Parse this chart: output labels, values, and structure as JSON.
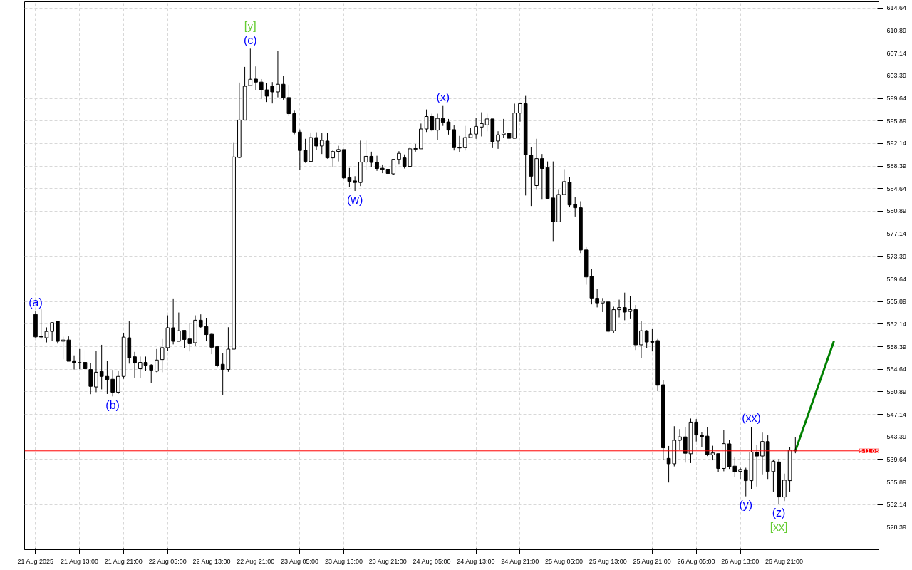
{
  "chart_data": {
    "type": "candlestick",
    "x": [
      "2025-08-21T05:00",
      "2025-08-21T06:00",
      "2025-08-21T07:00",
      "2025-08-21T08:00",
      "2025-08-21T09:00",
      "2025-08-21T10:00",
      "2025-08-21T11:00",
      "2025-08-21T12:00",
      "2025-08-21T13:00",
      "2025-08-21T14:00",
      "2025-08-21T15:00",
      "2025-08-21T16:00",
      "2025-08-21T17:00",
      "2025-08-21T18:00",
      "2025-08-21T19:00",
      "2025-08-21T20:00",
      "2025-08-21T21:00",
      "2025-08-21T22:00",
      "2025-08-21T23:00",
      "2025-08-22T00:00",
      "2025-08-22T01:00",
      "2025-08-22T02:00",
      "2025-08-22T03:00",
      "2025-08-22T04:00",
      "2025-08-22T05:00",
      "2025-08-22T06:00",
      "2025-08-22T07:00",
      "2025-08-22T08:00",
      "2025-08-22T09:00",
      "2025-08-22T10:00",
      "2025-08-22T11:00",
      "2025-08-22T12:00",
      "2025-08-22T13:00",
      "2025-08-22T14:00",
      "2025-08-22T15:00",
      "2025-08-22T16:00",
      "2025-08-22T17:00",
      "2025-08-22T18:00",
      "2025-08-22T19:00",
      "2025-08-22T20:00",
      "2025-08-22T21:00",
      "2025-08-22T22:00",
      "2025-08-22T23:00",
      "2025-08-23T00:00",
      "2025-08-23T01:00",
      "2025-08-23T02:00",
      "2025-08-23T03:00",
      "2025-08-23T04:00",
      "2025-08-23T05:00",
      "2025-08-23T06:00",
      "2025-08-23T07:00",
      "2025-08-23T08:00",
      "2025-08-23T09:00",
      "2025-08-23T10:00",
      "2025-08-23T11:00",
      "2025-08-23T12:00",
      "2025-08-23T13:00",
      "2025-08-23T14:00",
      "2025-08-23T15:00",
      "2025-08-23T16:00",
      "2025-08-23T17:00",
      "2025-08-23T18:00",
      "2025-08-23T19:00",
      "2025-08-23T20:00",
      "2025-08-23T21:00",
      "2025-08-23T22:00",
      "2025-08-23T23:00",
      "2025-08-24T00:00",
      "2025-08-24T01:00",
      "2025-08-24T02:00",
      "2025-08-24T03:00",
      "2025-08-24T04:00",
      "2025-08-24T05:00",
      "2025-08-24T06:00",
      "2025-08-24T07:00",
      "2025-08-24T08:00",
      "2025-08-24T09:00",
      "2025-08-24T10:00",
      "2025-08-24T11:00",
      "2025-08-24T12:00",
      "2025-08-24T13:00",
      "2025-08-24T14:00",
      "2025-08-24T15:00",
      "2025-08-24T16:00",
      "2025-08-24T17:00",
      "2025-08-24T18:00",
      "2025-08-24T19:00",
      "2025-08-24T20:00",
      "2025-08-24T21:00",
      "2025-08-24T22:00",
      "2025-08-24T23:00",
      "2025-08-25T00:00",
      "2025-08-25T01:00",
      "2025-08-25T02:00",
      "2025-08-25T03:00",
      "2025-08-25T04:00",
      "2025-08-25T05:00",
      "2025-08-25T06:00",
      "2025-08-25T07:00",
      "2025-08-25T08:00",
      "2025-08-25T09:00",
      "2025-08-25T10:00",
      "2025-08-25T11:00",
      "2025-08-25T12:00",
      "2025-08-25T13:00",
      "2025-08-25T14:00",
      "2025-08-25T15:00",
      "2025-08-25T16:00",
      "2025-08-25T17:00",
      "2025-08-25T18:00",
      "2025-08-25T19:00",
      "2025-08-25T20:00",
      "2025-08-25T21:00",
      "2025-08-25T22:00",
      "2025-08-25T23:00",
      "2025-08-26T00:00",
      "2025-08-26T01:00",
      "2025-08-26T02:00",
      "2025-08-26T03:00",
      "2025-08-26T04:00",
      "2025-08-26T05:00",
      "2025-08-26T06:00",
      "2025-08-26T07:00",
      "2025-08-26T08:00",
      "2025-08-26T09:00",
      "2025-08-26T10:00",
      "2025-08-26T11:00",
      "2025-08-26T12:00",
      "2025-08-26T13:00",
      "2025-08-26T14:00",
      "2025-08-26T15:00",
      "2025-08-26T16:00",
      "2025-08-26T17:00",
      "2025-08-26T18:00",
      "2025-08-26T19:00",
      "2025-08-26T20:00",
      "2025-08-26T21:00",
      "2025-08-26T22:00",
      "2025-08-26T23:00"
    ],
    "ohlc": [
      [
        563.75,
        564.3,
        559.8,
        560.02
      ],
      [
        560.1,
        564.6,
        559.7,
        560.0
      ],
      [
        559.87,
        561.6,
        559.1,
        560.92
      ],
      [
        560.92,
        562.4,
        559.3,
        562.39
      ],
      [
        562.59,
        562.6,
        558.9,
        559.28
      ],
      [
        559.3,
        560.05,
        556.3,
        559.5
      ],
      [
        559.5,
        560.1,
        555.97,
        555.97
      ],
      [
        556.05,
        556.95,
        554.6,
        555.7
      ],
      [
        555.75,
        558.0,
        554.65,
        555.7
      ],
      [
        555.78,
        557.8,
        553.75,
        554.73
      ],
      [
        554.6,
        555.7,
        550.5,
        551.8
      ],
      [
        551.7,
        557.65,
        550.83,
        554.15
      ],
      [
        554.27,
        558.7,
        551.3,
        553.45
      ],
      [
        553.45,
        556.05,
        550.53,
        552.93
      ],
      [
        552.98,
        554.53,
        550.13,
        550.83
      ],
      [
        550.83,
        554.4,
        550.53,
        553.45
      ],
      [
        553.45,
        560.64,
        553.05,
        559.98
      ],
      [
        559.87,
        562.59,
        555.58,
        556.55
      ],
      [
        556.71,
        557.53,
        553.25,
        555.67
      ],
      [
        554.73,
        556.75,
        553.13,
        555.78
      ],
      [
        555.78,
        556.75,
        554.42,
        555.32
      ],
      [
        555.35,
        555.47,
        552.35,
        554.5
      ],
      [
        554.33,
        558.0,
        554.15,
        556.17
      ],
      [
        556.25,
        559.67,
        554.15,
        558.23
      ],
      [
        558.23,
        563.6,
        557.65,
        561.53
      ],
      [
        561.53,
        566.4,
        558.77,
        559.28
      ],
      [
        559.28,
        564.07,
        559.28,
        561.03
      ],
      [
        561.1,
        561.1,
        558.12,
        559.59
      ],
      [
        559.67,
        562.32,
        557.6,
        558.89
      ],
      [
        559.05,
        563.6,
        558.5,
        562.79
      ],
      [
        562.79,
        563.76,
        561.53,
        561.69
      ],
      [
        561.73,
        563.17,
        559.28,
        560.4
      ],
      [
        560.45,
        560.64,
        557.14,
        558.3
      ],
      [
        558.38,
        558.58,
        555.0,
        555.27
      ],
      [
        555.47,
        557.34,
        550.41,
        554.61
      ],
      [
        554.61,
        561.62,
        554.22,
        557.98
      ],
      [
        557.98,
        592.23,
        557.98,
        589.9
      ],
      [
        589.82,
        602.27,
        589.7,
        596.05
      ],
      [
        596.05,
        604.87,
        596.05,
        601.65
      ],
      [
        601.77,
        607.9,
        601.77,
        602.82
      ],
      [
        602.85,
        604.95,
        600.98,
        602.35
      ],
      [
        602.35,
        602.85,
        599.55,
        601.02
      ],
      [
        601.06,
        602.15,
        599.04,
        600.02
      ],
      [
        601.65,
        602.35,
        598.8,
        600.72
      ],
      [
        600.72,
        607.52,
        599.82,
        601.99
      ],
      [
        601.99,
        603.32,
        599.43,
        599.73
      ],
      [
        599.78,
        601.88,
        596.7,
        597.1
      ],
      [
        597.1,
        597.6,
        593.67,
        594.06
      ],
      [
        594.06,
        594.48,
        587.76,
        590.98
      ],
      [
        591.03,
        592.93,
        588.93,
        589.16
      ],
      [
        589.16,
        593.98,
        589.16,
        593.13
      ],
      [
        593.13,
        594.02,
        591.1,
        591.73
      ],
      [
        591.73,
        593.9,
        590.4,
        592.66
      ],
      [
        592.55,
        593.9,
        589.63,
        589.75
      ],
      [
        589.75,
        591.1,
        588.18,
        590.8
      ],
      [
        590.83,
        591.76,
        589.16,
        591.14
      ],
      [
        591.14,
        591.14,
        586.31,
        586.43
      ],
      [
        586.47,
        588.07,
        584.96,
        585.85
      ],
      [
        585.93,
        586.71,
        584.26,
        585.66
      ],
      [
        585.66,
        592.62,
        585.07,
        589.05
      ],
      [
        589.05,
        592.62,
        587.76,
        590.01
      ],
      [
        590.01,
        590.79,
        588.26,
        589.0
      ],
      [
        589.05,
        590.1,
        587.6,
        587.99
      ],
      [
        588.03,
        588.65,
        587.21,
        587.83
      ],
      [
        587.87,
        588.34,
        586.63,
        587.17
      ],
      [
        587.1,
        589.51,
        586.98,
        589.51
      ],
      [
        589.51,
        590.87,
        588.73,
        590.51
      ],
      [
        589.75,
        590.33,
        587.99,
        588.34
      ],
      [
        588.34,
        591.5,
        588.34,
        591.26
      ],
      [
        591.2,
        592.08,
        590.79,
        591.3
      ],
      [
        591.26,
        595.46,
        591.26,
        594.56
      ],
      [
        594.56,
        597.8,
        594.06,
        596.63
      ],
      [
        596.63,
        597.1,
        594.18,
        594.37
      ],
      [
        594.37,
        597.1,
        592.73,
        596.32
      ],
      [
        596.32,
        598.38,
        595.07,
        595.65
      ],
      [
        595.73,
        596.23,
        593.63,
        594.37
      ],
      [
        594.45,
        595.15,
        590.98,
        591.45
      ],
      [
        591.5,
        593.4,
        590.71,
        591.4
      ],
      [
        591.45,
        595.07,
        590.98,
        593.13
      ],
      [
        593.13,
        594.68,
        593.13,
        593.71
      ],
      [
        593.71,
        596.43,
        592.93,
        594.99
      ],
      [
        594.88,
        597.33,
        593.32,
        595.46
      ],
      [
        595.23,
        597.1,
        594.18,
        596.23
      ],
      [
        596.23,
        596.23,
        591.38,
        592.43
      ],
      [
        592.55,
        594.18,
        591.26,
        593.6
      ],
      [
        593.63,
        596.23,
        593.05,
        593.9
      ],
      [
        593.9,
        594.76,
        592.08,
        593.01
      ],
      [
        593.01,
        598.77,
        593.01,
        597.21
      ],
      [
        597.21,
        598.96,
        595.77,
        598.77
      ],
      [
        598.77,
        600.05,
        583.51,
        590.28
      ],
      [
        590.21,
        591.5,
        581.76,
        586.71
      ],
      [
        585.15,
        592.93,
        584.56,
        589.63
      ],
      [
        589.63,
        590.4,
        582.81,
        587.99
      ],
      [
        588.15,
        589.16,
        582.93,
        583.01
      ],
      [
        583.09,
        589.16,
        575.93,
        579.12
      ],
      [
        579.12,
        584.56,
        579.12,
        583.67
      ],
      [
        583.67,
        587.88,
        583.67,
        585.81
      ],
      [
        585.7,
        586.51,
        581.53,
        581.93
      ],
      [
        582.04,
        583.21,
        580.01,
        581.46
      ],
      [
        581.46,
        582.54,
        573.94,
        574.45
      ],
      [
        574.45,
        575.04,
        568.69,
        569.97
      ],
      [
        570.05,
        571.34,
        565.42,
        566.47
      ],
      [
        566.44,
        568.04,
        564.92,
        565.66
      ],
      [
        565.66,
        566.47,
        564.14,
        565.94
      ],
      [
        565.82,
        565.82,
        560.75,
        560.95
      ],
      [
        561.03,
        565.03,
        560.64,
        564.54
      ],
      [
        564.54,
        566.2,
        563.25,
        564.89
      ],
      [
        564.89,
        567.37,
        562.79,
        564.14
      ],
      [
        564.24,
        566.75,
        562.97,
        564.54
      ],
      [
        564.54,
        565.31,
        557.84,
        558.7
      ],
      [
        558.7,
        562.7,
        556.48,
        561.03
      ],
      [
        561.03,
        561.15,
        558.12,
        559.16
      ],
      [
        559.28,
        561.3,
        557.6,
        559.12
      ],
      [
        559.4,
        559.67,
        550.99,
        551.98
      ],
      [
        552.05,
        552.86,
        539.51,
        541.58
      ],
      [
        539.83,
        541.89,
        535.82,
        538.93
      ],
      [
        538.93,
        545.17,
        538.5,
        542.83
      ],
      [
        542.83,
        544.7,
        541.19,
        543.4
      ],
      [
        543.4,
        545.05,
        539.13,
        540.68
      ],
      [
        540.6,
        546.45,
        539.05,
        545.86
      ],
      [
        545.86,
        546.36,
        542.63,
        543.71
      ],
      [
        543.68,
        544.23,
        541.66,
        543.4
      ],
      [
        543.52,
        544.96,
        540.21,
        540.41
      ],
      [
        540.41,
        541.93,
        539.51,
        540.73
      ],
      [
        540.61,
        540.61,
        537.57,
        538.16
      ],
      [
        538.16,
        544.5,
        537.69,
        542.28
      ],
      [
        542.24,
        542.86,
        538.08,
        538.46
      ],
      [
        538.54,
        540.03,
        536.71,
        537.61
      ],
      [
        537.69,
        538.27,
        536.44,
        537.99
      ],
      [
        537.96,
        538.27,
        533.52,
        536.13
      ],
      [
        536.13,
        545.08,
        534.78,
        540.88
      ],
      [
        540.88,
        542.05,
        535.16,
        540.22
      ],
      [
        540.22,
        544.11,
        537.18,
        542.63
      ],
      [
        542.63,
        543.65,
        536.41,
        537.65
      ],
      [
        537.65,
        539.52,
        534.31,
        539.36
      ],
      [
        539.24,
        539.74,
        532.24,
        533.41
      ],
      [
        533.41,
        537.3,
        532.74,
        536.21
      ],
      [
        536.13,
        541.69,
        534.31,
        541.19
      ],
      [
        541.19,
        543.33,
        540.68,
        541.08
      ]
    ],
    "series": [
      {
        "type": "line",
        "color": "#008000",
        "x": [
          "2025-08-26T23:00",
          "2025-08-27T06:00"
        ],
        "values": [
          541.08,
          559.3
        ]
      }
    ],
    "xlim": [
      "2025-08-21T03:00",
      "2025-08-27T14:10"
    ],
    "ylim": [
      524.66,
      615.69
    ],
    "xticks": [
      {
        "value": "2025-08-21T05:00",
        "label": "21 Aug 2025"
      },
      {
        "value": "2025-08-21T13:00",
        "label": "21 Aug 13:00"
      },
      {
        "value": "2025-08-21T21:00",
        "label": "21 Aug 21:00"
      },
      {
        "value": "2025-08-22T05:00",
        "label": "22 Aug 05:00"
      },
      {
        "value": "2025-08-22T13:00",
        "label": "22 Aug 13:00"
      },
      {
        "value": "2025-08-22T21:00",
        "label": "22 Aug 21:00"
      },
      {
        "value": "2025-08-23T05:00",
        "label": "23 Aug 05:00"
      },
      {
        "value": "2025-08-23T13:00",
        "label": "23 Aug 13:00"
      },
      {
        "value": "2025-08-23T21:00",
        "label": "23 Aug 21:00"
      },
      {
        "value": "2025-08-24T05:00",
        "label": "24 Aug 05:00"
      },
      {
        "value": "2025-08-24T13:00",
        "label": "24 Aug 13:00"
      },
      {
        "value": "2025-08-24T21:00",
        "label": "24 Aug 21:00"
      },
      {
        "value": "2025-08-25T05:00",
        "label": "25 Aug 05:00"
      },
      {
        "value": "2025-08-25T13:00",
        "label": "25 Aug 13:00"
      },
      {
        "value": "2025-08-25T21:00",
        "label": "25 Aug 21:00"
      },
      {
        "value": "2025-08-26T05:00",
        "label": "26 Aug 05:00"
      },
      {
        "value": "2025-08-26T13:00",
        "label": "26 Aug 13:00"
      },
      {
        "value": "2025-08-26T21:00",
        "label": "26 Aug 21:00"
      }
    ],
    "yticks": [
      614.64,
      610.89,
      607.14,
      603.39,
      599.64,
      595.89,
      592.14,
      588.39,
      584.64,
      580.89,
      577.14,
      573.39,
      569.64,
      565.89,
      562.14,
      558.39,
      554.64,
      550.89,
      547.14,
      543.39,
      539.64,
      535.89,
      532.14,
      528.39
    ],
    "grid": true,
    "ref_lines": [
      {
        "axis": "y",
        "value": 541.08,
        "label": "541.08",
        "color": "#ff0000"
      }
    ],
    "annotations": [
      {
        "text": "(a)",
        "x": "2025-08-21T05:00",
        "y": 564.3
      },
      {
        "text": "(c)",
        "x": "2025-08-22T20:00",
        "y": 607.9
      },
      {
        "text": "[y]",
        "x": "2025-08-22T20:00",
        "y": 607.9
      },
      {
        "text": "(b)",
        "x": "2025-08-21T19:00",
        "y": 550.13
      },
      {
        "text": "(w)",
        "x": "2025-08-23T15:00",
        "y": 584.26
      },
      {
        "text": "(x)",
        "x": "2025-08-24T07:00",
        "y": 598.38
      },
      {
        "text": "(xx)",
        "x": "2025-08-26T15:00",
        "y": 545.08
      },
      {
        "text": "(y)",
        "x": "2025-08-26T14:00",
        "y": 533.52
      },
      {
        "text": "(z)",
        "x": "2025-08-26T20:00",
        "y": 532.24
      },
      {
        "text": "[xx]",
        "x": "2025-08-26T20:00",
        "y": 532.24
      }
    ]
  }
}
